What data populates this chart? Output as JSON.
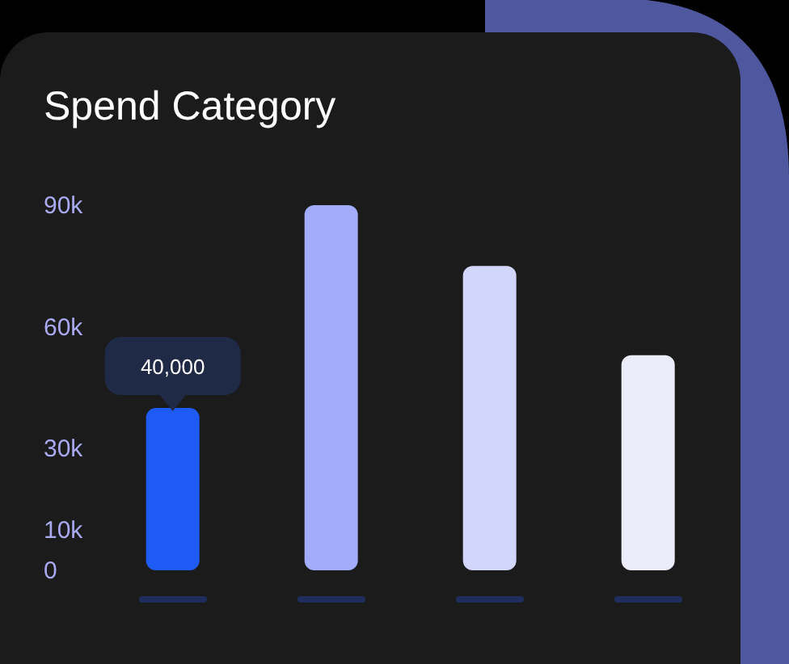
{
  "chart_data": {
    "type": "bar",
    "title": "Spend Category",
    "categories": [
      null,
      null,
      null,
      null
    ],
    "values": [
      40000,
      90000,
      75000,
      53000
    ],
    "value_labels": [
      "40,000",
      null,
      null,
      null
    ],
    "colors": [
      "#1e5bf5",
      "#a3acfb",
      "#d3d6fb",
      "#ebebfa"
    ],
    "ylim": [
      0,
      90000
    ],
    "yticks": [
      0,
      {
        "value": 10000,
        "label": "10k"
      },
      {
        "value": 30000,
        "label": "30k"
      },
      {
        "value": 60000,
        "label": "60k"
      },
      {
        "value": 90000,
        "label": "90k"
      }
    ],
    "grid": false,
    "legend": false
  }
}
